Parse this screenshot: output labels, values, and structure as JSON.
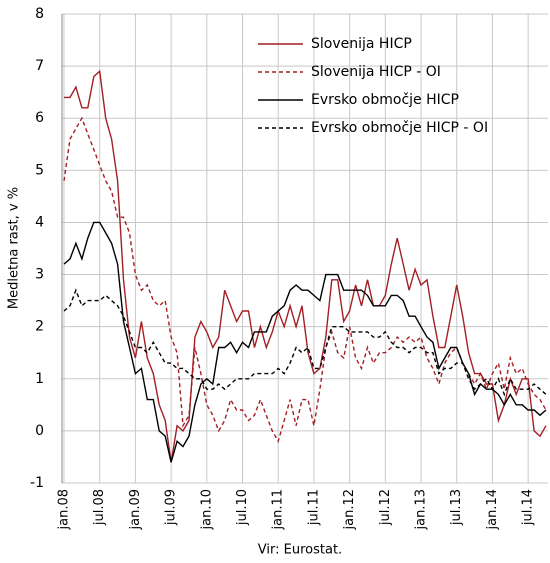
{
  "chart_data": {
    "type": "line",
    "y_label": "Medletna rast, v %",
    "source": "Vir: Eurostat.",
    "categories": [
      "jan.08",
      null,
      null,
      null,
      null,
      null,
      "jul.08",
      null,
      null,
      null,
      null,
      null,
      "jan.09",
      null,
      null,
      null,
      null,
      null,
      "jul.09",
      null,
      null,
      null,
      null,
      null,
      "jan.10",
      null,
      null,
      null,
      null,
      null,
      "jul.10",
      null,
      null,
      null,
      null,
      null,
      "jan.11",
      null,
      null,
      null,
      null,
      null,
      "jul.11",
      null,
      null,
      null,
      null,
      null,
      "jan.12",
      null,
      null,
      null,
      null,
      null,
      "jul.12",
      null,
      null,
      null,
      null,
      null,
      "jan.13",
      null,
      null,
      null,
      null,
      null,
      "jul.13",
      null,
      null,
      null,
      null,
      null,
      "jan.14",
      null,
      null,
      null,
      null,
      null,
      "jul.14",
      null,
      null,
      null
    ],
    "series": [
      {
        "name": "Slovenija HICP",
        "color": "#a31f24",
        "dashed": false,
        "values": [
          6.4,
          6.4,
          6.6,
          6.2,
          6.2,
          6.8,
          6.9,
          6.0,
          5.6,
          4.8,
          2.9,
          1.8,
          1.4,
          2.1,
          1.4,
          1.1,
          0.5,
          0.2,
          -0.6,
          0.1,
          0.0,
          0.2,
          1.8,
          2.1,
          1.9,
          1.6,
          1.8,
          2.7,
          2.4,
          2.1,
          2.3,
          2.3,
          1.6,
          2.0,
          1.6,
          1.9,
          2.3,
          2.0,
          2.4,
          2.0,
          2.4,
          1.5,
          1.1,
          1.2,
          1.8,
          2.9,
          2.9,
          2.1,
          2.3,
          2.8,
          2.4,
          2.9,
          2.4,
          2.4,
          2.6,
          3.2,
          3.7,
          3.2,
          2.7,
          3.1,
          2.8,
          2.9,
          2.2,
          1.6,
          1.6,
          2.2,
          2.8,
          2.2,
          1.5,
          1.1,
          1.1,
          0.9,
          0.9,
          0.2,
          0.5,
          1.0,
          0.7,
          1.0,
          1.0,
          0.0,
          -0.1,
          0.1
        ]
      },
      {
        "name": "Slovenija HICP - OI",
        "color": "#a31f24",
        "dashed": true,
        "values": [
          4.8,
          5.6,
          5.8,
          6.0,
          5.7,
          5.4,
          5.1,
          4.8,
          4.6,
          4.1,
          4.1,
          3.8,
          3.0,
          2.7,
          2.8,
          2.5,
          2.4,
          2.5,
          1.8,
          1.5,
          0.1,
          0.3,
          1.6,
          1.1,
          0.5,
          0.3,
          0.0,
          0.2,
          0.6,
          0.4,
          0.4,
          0.2,
          0.3,
          0.6,
          0.3,
          0.0,
          -0.2,
          0.2,
          0.6,
          0.1,
          0.6,
          0.6,
          0.1,
          0.8,
          1.6,
          1.9,
          1.5,
          1.4,
          2.0,
          1.4,
          1.2,
          1.6,
          1.3,
          1.5,
          1.5,
          1.6,
          1.8,
          1.7,
          1.8,
          1.7,
          1.8,
          1.4,
          1.2,
          0.9,
          1.3,
          1.5,
          1.6,
          1.3,
          1.1,
          0.9,
          1.1,
          0.8,
          1.1,
          1.3,
          0.8,
          1.4,
          1.1,
          1.2,
          0.9,
          0.7,
          0.6,
          0.4
        ]
      },
      {
        "name": "Evrsko območje HICP",
        "color": "#000000",
        "dashed": false,
        "values": [
          3.2,
          3.3,
          3.6,
          3.3,
          3.7,
          4.0,
          4.0,
          3.8,
          3.6,
          3.2,
          2.1,
          1.6,
          1.1,
          1.2,
          0.6,
          0.6,
          0.0,
          -0.1,
          -0.6,
          -0.2,
          -0.3,
          -0.1,
          0.5,
          0.9,
          1.0,
          0.9,
          1.6,
          1.6,
          1.7,
          1.5,
          1.7,
          1.6,
          1.9,
          1.9,
          1.9,
          2.2,
          2.3,
          2.4,
          2.7,
          2.8,
          2.7,
          2.7,
          2.6,
          2.5,
          3.0,
          3.0,
          3.0,
          2.7,
          2.7,
          2.7,
          2.7,
          2.6,
          2.4,
          2.4,
          2.4,
          2.6,
          2.6,
          2.5,
          2.2,
          2.2,
          2.0,
          1.8,
          1.7,
          1.2,
          1.4,
          1.6,
          1.6,
          1.3,
          1.1,
          0.7,
          0.9,
          0.8,
          0.8,
          0.7,
          0.5,
          0.7,
          0.5,
          0.5,
          0.4,
          0.4,
          0.3,
          0.4
        ]
      },
      {
        "name": "Evrsko območje HICP - OI",
        "color": "#000000",
        "dashed": true,
        "values": [
          2.3,
          2.4,
          2.7,
          2.4,
          2.5,
          2.5,
          2.5,
          2.6,
          2.5,
          2.4,
          2.2,
          1.9,
          1.6,
          1.6,
          1.5,
          1.7,
          1.5,
          1.3,
          1.3,
          1.2,
          1.2,
          1.1,
          1.0,
          1.0,
          0.8,
          0.8,
          0.9,
          0.8,
          0.9,
          1.0,
          1.0,
          1.0,
          1.1,
          1.1,
          1.1,
          1.1,
          1.2,
          1.1,
          1.3,
          1.6,
          1.5,
          1.6,
          1.2,
          1.2,
          1.6,
          2.0,
          2.0,
          2.0,
          1.9,
          1.9,
          1.9,
          1.9,
          1.8,
          1.8,
          1.9,
          1.7,
          1.6,
          1.6,
          1.5,
          1.6,
          1.6,
          1.5,
          1.5,
          1.1,
          1.2,
          1.2,
          1.3,
          1.3,
          1.0,
          0.8,
          0.9,
          1.0,
          0.8,
          1.0,
          0.7,
          1.0,
          0.8,
          0.8,
          0.8,
          0.9,
          0.8,
          0.7
        ]
      }
    ],
    "ylim": [
      -1,
      8
    ],
    "yticks": [
      -1,
      0,
      1,
      2,
      3,
      4,
      5,
      6,
      7,
      8
    ],
    "grid": true
  }
}
